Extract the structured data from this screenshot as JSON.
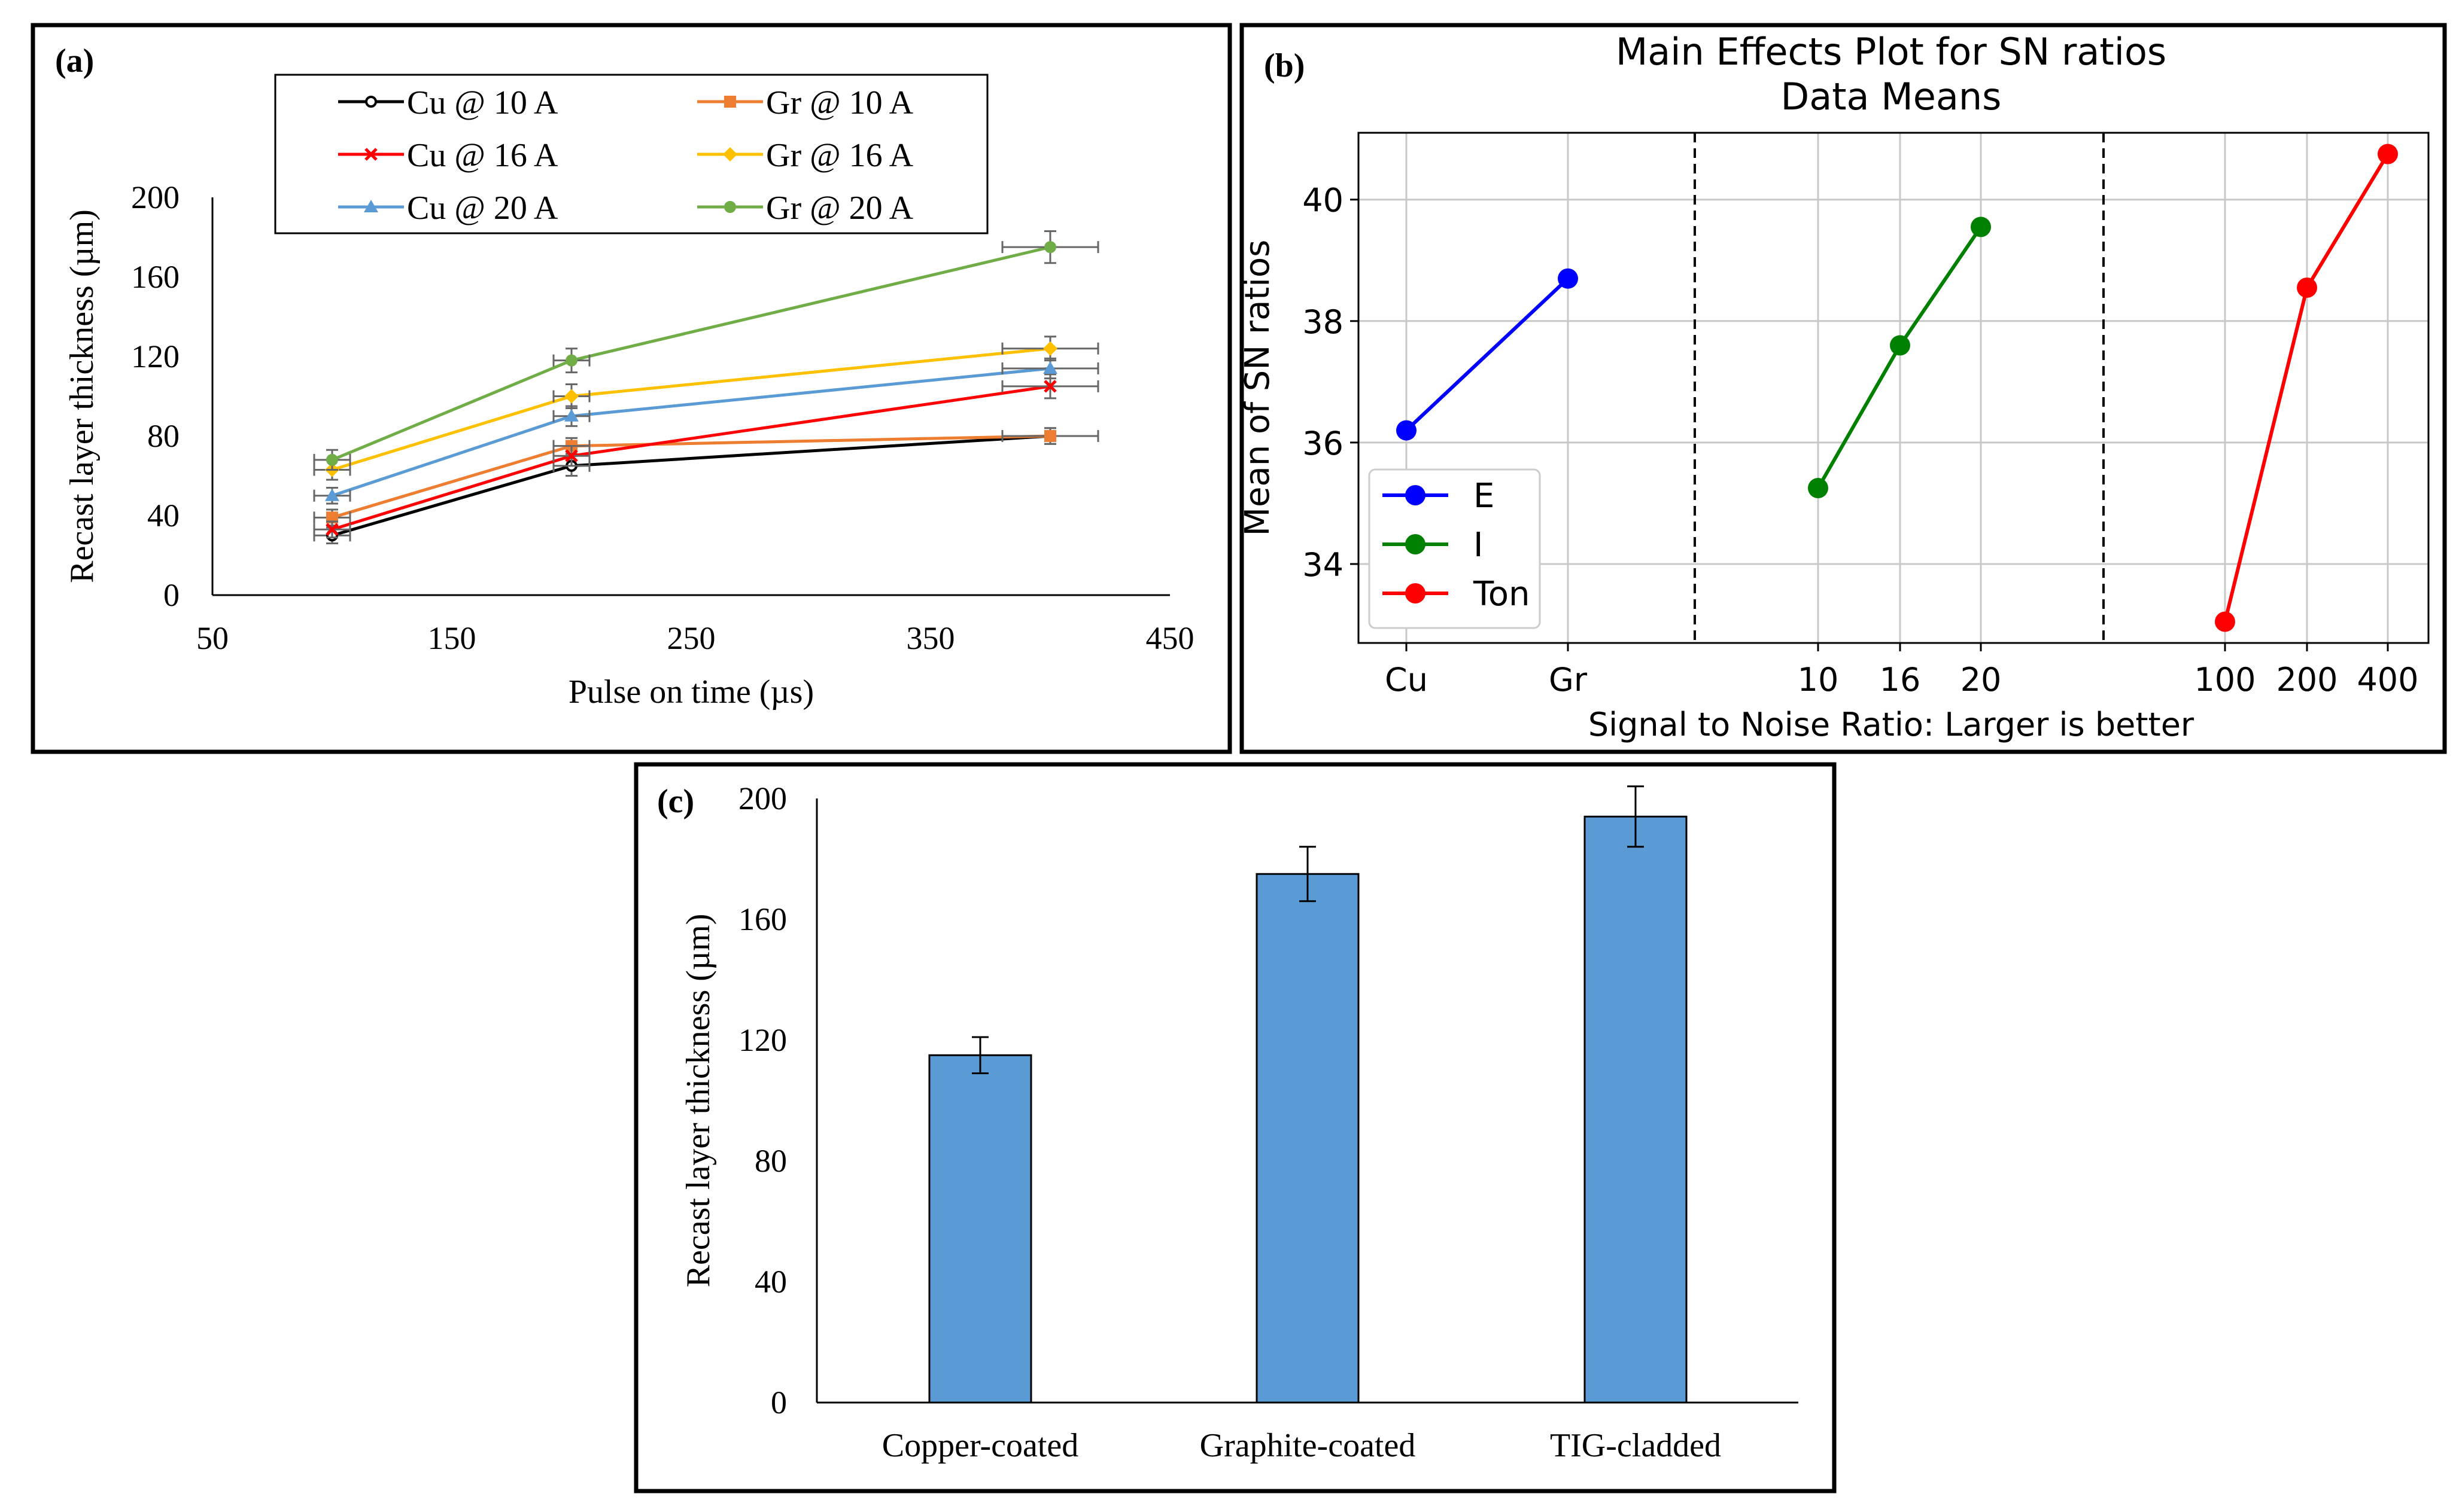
{
  "chart_data": [
    {
      "panel_label": "(a)",
      "type": "line",
      "xlabel": "Pulse on time (µs)",
      "ylabel": "Recast layer thickness (µm)",
      "xlim": [
        50,
        450
      ],
      "ylim": [
        0,
        200
      ],
      "xticks": [
        50,
        150,
        250,
        350,
        450
      ],
      "yticks": [
        0,
        40,
        80,
        120,
        160,
        200
      ],
      "grid": false,
      "legend_position": "top",
      "x": [
        100,
        200,
        400
      ],
      "series": [
        {
          "name": "Cu @ 10 A",
          "values": [
            30,
            65,
            80
          ],
          "error": [
            4,
            5,
            4
          ],
          "color": "#000000",
          "marker": "circle-open"
        },
        {
          "name": "Gr @ 10 A",
          "values": [
            39,
            75,
            80
          ],
          "error": [
            4,
            4,
            4
          ],
          "color": "#ED7D31",
          "marker": "square"
        },
        {
          "name": "Cu @ 16 A",
          "values": [
            33,
            70,
            105
          ],
          "error": [
            4,
            5,
            6
          ],
          "color": "#FF0000",
          "marker": "x"
        },
        {
          "name": "Gr @ 16 A",
          "values": [
            63,
            100,
            124
          ],
          "error": [
            5,
            6,
            6
          ],
          "color": "#FFC000",
          "marker": "diamond"
        },
        {
          "name": "Cu @ 20 A",
          "values": [
            50,
            90,
            114
          ],
          "error": [
            4,
            5,
            5
          ],
          "color": "#5B9BD5",
          "marker": "triangle"
        },
        {
          "name": "Gr @ 20 A",
          "values": [
            68,
            118,
            175
          ],
          "error": [
            5,
            6,
            8
          ],
          "color": "#70AD47",
          "marker": "circle"
        }
      ]
    },
    {
      "panel_label": "(b)",
      "type": "line",
      "title": "Main Effects Plot for SN ratios",
      "subtitle": "Data Means",
      "xlabel": "Signal to Noise Ratio: Larger is better",
      "ylabel": "Mean of SN ratios",
      "ylim": [
        32.7,
        41.1
      ],
      "yticks": [
        34,
        36,
        38,
        40
      ],
      "grid": true,
      "legend_position": "bottom-left",
      "series": [
        {
          "name": "E",
          "categories": [
            "Cu",
            "Gr"
          ],
          "values": [
            36.2,
            38.7
          ],
          "color": "#0000FF"
        },
        {
          "name": "I",
          "categories": [
            "10",
            "16",
            "20"
          ],
          "values": [
            35.25,
            37.6,
            39.55
          ],
          "color": "#008000"
        },
        {
          "name": "Ton",
          "categories": [
            "100",
            "200",
            "400"
          ],
          "values": [
            33.05,
            38.55,
            40.75
          ],
          "color": "#FF0000"
        }
      ]
    },
    {
      "panel_label": "(c)",
      "type": "bar",
      "ylabel": "Recast layer thickness (µm)",
      "categories": [
        "Copper-coated",
        "Graphite-coated",
        "TIG-cladded"
      ],
      "values": [
        115,
        175,
        194
      ],
      "error": [
        6,
        9,
        10
      ],
      "ylim": [
        0,
        200
      ],
      "yticks": [
        0,
        40,
        80,
        120,
        160,
        200
      ],
      "grid": false,
      "bar_color": "#5B9BD5"
    }
  ]
}
